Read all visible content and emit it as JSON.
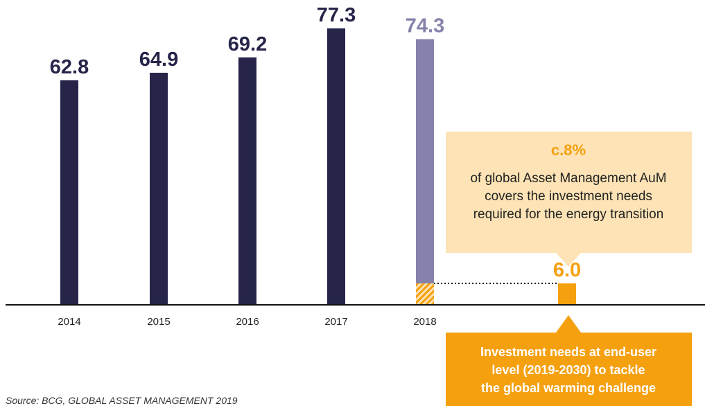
{
  "chart_data": {
    "type": "bar",
    "categories": [
      "2014",
      "2015",
      "2016",
      "2017",
      "2018",
      null
    ],
    "values": [
      62.8,
      64.9,
      69.2,
      77.3,
      74.3,
      6.0
    ],
    "value_labels": [
      "62.8",
      "64.9",
      "69.2",
      "77.3",
      "74.3",
      "6.0"
    ],
    "colors": [
      "#262549",
      "#262549",
      "#262549",
      "#262549",
      "#8583ab",
      "#f5a00f"
    ],
    "annotations": {
      "callout": {
        "headline": "c.8%",
        "lines": [
          "of global Asset Management AuM",
          "covers the investment needs",
          "required for the energy transition"
        ]
      },
      "note": {
        "lines": [
          "Investment needs at end-user",
          "level (2019-2030) to tackle",
          "the global warming challenge"
        ]
      }
    },
    "source": "Source: BCG, GLOBAL ASSET MANAGEMENT 2019"
  }
}
